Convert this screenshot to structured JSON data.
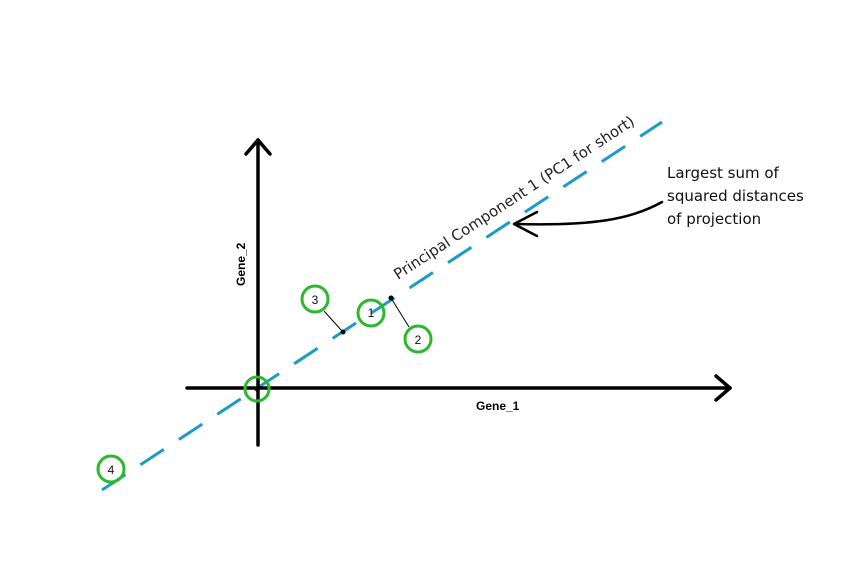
{
  "axes": {
    "x_label": "Gene_1",
    "y_label": "Gene_2"
  },
  "principal_component": {
    "label": "Principal Component 1 (PC1 for short)",
    "color": "#1a9bc9"
  },
  "points": [
    {
      "label": "1"
    },
    {
      "label": "2"
    },
    {
      "label": "3"
    },
    {
      "label": "4"
    }
  ],
  "point_color": "#2db82d",
  "annotation": {
    "lines": [
      "Largest sum of",
      "squared distances",
      "of projection"
    ]
  }
}
